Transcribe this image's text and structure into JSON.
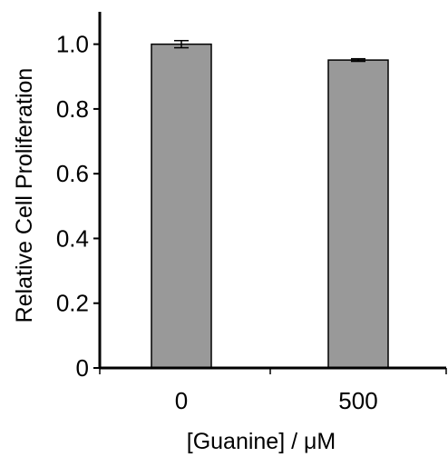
{
  "chart_data": {
    "type": "bar",
    "title": "",
    "xlabel": "[Guanine] / μM",
    "ylabel": "Relative Cell Proliferation",
    "categories": [
      "0",
      "500"
    ],
    "values": [
      1.0,
      0.951
    ],
    "errors": [
      0.011,
      0.004
    ],
    "ylim": [
      0,
      1.1
    ],
    "yticks": [
      0,
      0.2,
      0.4,
      0.6,
      0.8,
      1.0
    ],
    "ytick_labels": [
      "0",
      "0.2",
      "0.4",
      "0.6",
      "0.8",
      "1.0"
    ],
    "bar_color": "#999999",
    "grid": false,
    "legend": "none"
  }
}
